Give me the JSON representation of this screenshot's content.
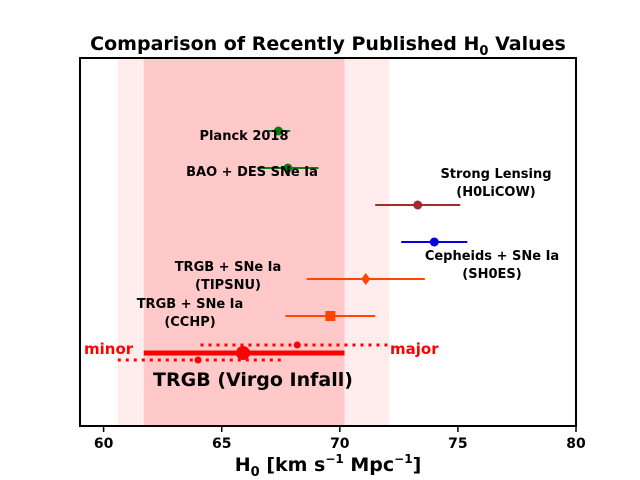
{
  "chart_data": {
    "type": "scatter",
    "title_main": "Comparison of Recently Published H",
    "title_sub": "0",
    "title_tail": " Values",
    "xlabel_main": "H",
    "xlabel_sub": "0",
    "xlabel_tail": " [km s",
    "xlabel_sup1": "−1",
    "xlabel_mid": " Mpc",
    "xlabel_sup2": "−1",
    "xlabel_end": "]",
    "xlim": [
      59,
      80
    ],
    "x_ticks": [
      60,
      65,
      70,
      75,
      80
    ],
    "grid": false,
    "bands": [
      {
        "xmin": 60.6,
        "xmax": 72.1,
        "color": "#ff6a6a",
        "opacity": 0.12
      },
      {
        "xmin": 61.7,
        "xmax": 70.2,
        "color": "#ff6a6a",
        "opacity": 0.28
      }
    ],
    "measurements": [
      {
        "label_lines": [
          "Planck 2018"
        ],
        "x": 67.4,
        "xerr": 0.5,
        "color": "#0b7d0b",
        "marker": "circle"
      },
      {
        "label_lines": [
          "BAO + DES SNe Ia"
        ],
        "x": 67.8,
        "xerr": 1.3,
        "color": "#0b7d0b",
        "marker": "circle"
      },
      {
        "label_lines": [
          "Strong Lensing",
          "(H0LiCOW)"
        ],
        "x": 73.3,
        "xerr": 1.8,
        "color": "#a52a2a",
        "marker": "circle"
      },
      {
        "label_lines": [
          "Cepheids + SNe Ia",
          "(SH0ES)"
        ],
        "x": 74.0,
        "xerr": 1.4,
        "color": "#0000e0",
        "marker": "circle"
      },
      {
        "label_lines": [
          "TRGB + SNe Ia",
          "(TIPSNU)"
        ],
        "x": 71.1,
        "xerr": 2.5,
        "color": "#ff4500",
        "marker": "diamond"
      },
      {
        "label_lines": [
          "TRGB + SNe Ia",
          "(CCHP)"
        ],
        "x": 69.6,
        "xerr": 1.9,
        "color": "#ff4500",
        "marker": "square"
      }
    ],
    "trgb_virgo": {
      "label": "TRGB (Virgo Infall)",
      "color": "#ff0000",
      "main": {
        "x": 65.9,
        "xmin": 61.7,
        "xmax": 70.2
      },
      "major": {
        "label": "major",
        "x": 68.2,
        "xmin": 64.1,
        "xmax": 72.1
      },
      "minor": {
        "label": "minor",
        "x": 64.0,
        "xmin": 60.6,
        "xmax": 67.5
      }
    }
  }
}
